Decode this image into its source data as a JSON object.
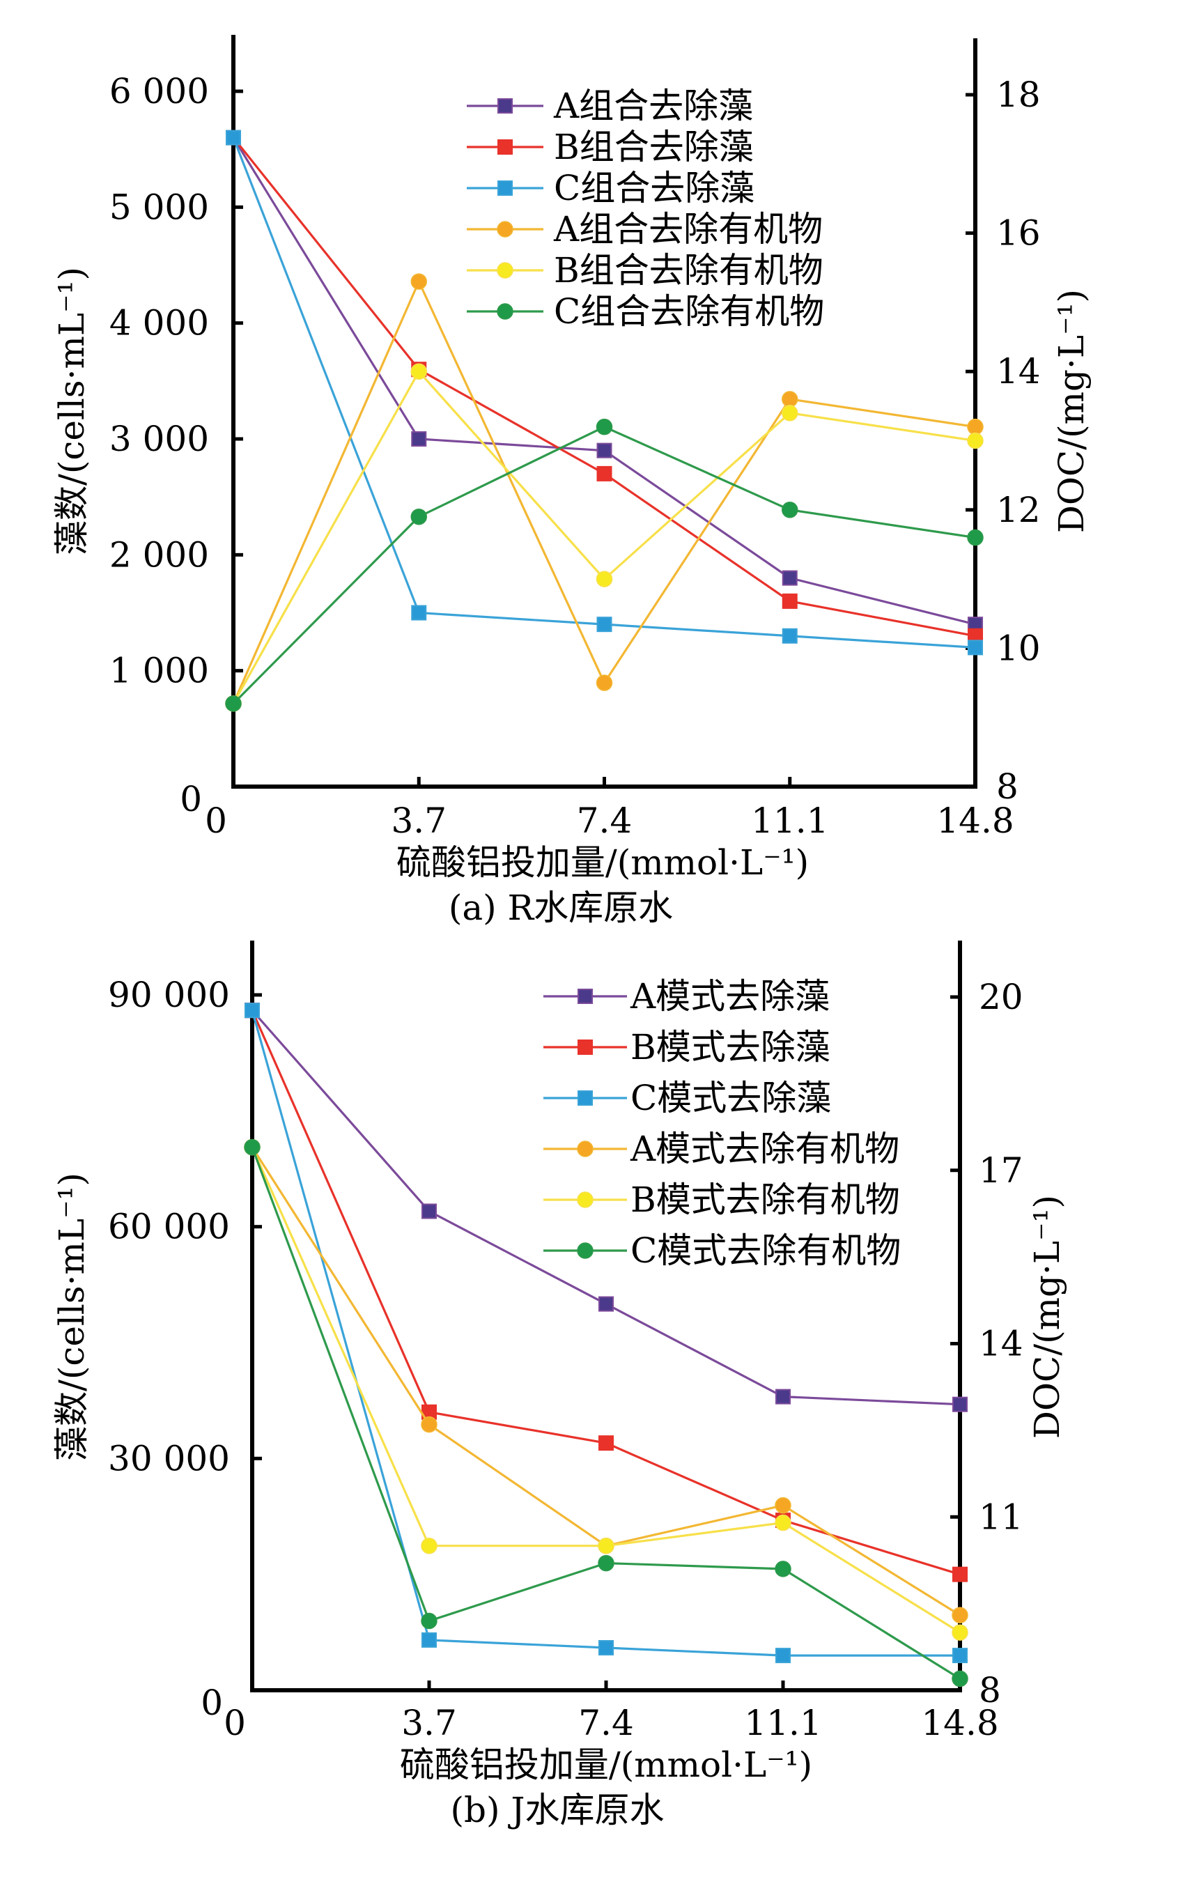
{
  "chart_data": [
    {
      "type": "line",
      "caption": "(a) R水库原水",
      "xlabel": "硫酸铝投加量/(mmol·L⁻¹)",
      "ylabel": "藻数/(cells·mL⁻¹)",
      "y2label": "DOC/(mg·L⁻¹)",
      "x_ticks": [
        "0",
        "3.7",
        "7.4",
        "11.1",
        "14.8"
      ],
      "x": [
        0,
        3.7,
        7.4,
        11.1,
        14.8
      ],
      "xlim": [
        0,
        14.8
      ],
      "ylim": [
        0,
        6000
      ],
      "y_ticks": [
        {
          "v": 0,
          "label": "0"
        },
        {
          "v": 1000,
          "label": "1 000"
        },
        {
          "v": 2000,
          "label": "2 000"
        },
        {
          "v": 3000,
          "label": "3 000"
        },
        {
          "v": 4000,
          "label": "4 000"
        },
        {
          "v": 5000,
          "label": "5 000"
        },
        {
          "v": 6000,
          "label": "6 000"
        }
      ],
      "y2lim": [
        8,
        18
      ],
      "y2_ticks": [
        {
          "v": 8,
          "label": "8"
        },
        {
          "v": 10,
          "label": "10"
        },
        {
          "v": 12,
          "label": "12"
        },
        {
          "v": 14,
          "label": "14"
        },
        {
          "v": 16,
          "label": "16"
        },
        {
          "v": 18,
          "label": "18"
        }
      ],
      "legend_position": "top-right",
      "grid": false,
      "series": [
        {
          "name": "A组合去除藻",
          "axis": "left",
          "marker": "square",
          "color": "#7b4a9a",
          "marker_fill": "#4b3a8c",
          "values": [
            5600,
            3000,
            2900,
            1800,
            1400
          ]
        },
        {
          "name": "B组合去除藻",
          "axis": "left",
          "marker": "square",
          "color": "#e8322a",
          "marker_fill": "#e8322a",
          "values": [
            5600,
            3600,
            2700,
            1600,
            1300
          ]
        },
        {
          "name": "C组合去除藻",
          "axis": "left",
          "marker": "square",
          "color": "#3aa3d8",
          "marker_fill": "#2a9ad6",
          "values": [
            5600,
            1500,
            1400,
            1300,
            1200
          ]
        },
        {
          "name": "A组合去除有机物",
          "axis": "right",
          "marker": "circle",
          "color": "#f3b733",
          "marker_fill": "#f5a623",
          "values": [
            9.2,
            15.3,
            9.5,
            13.6,
            13.2
          ]
        },
        {
          "name": "B组合去除有机物",
          "axis": "right",
          "marker": "circle",
          "color": "#f7e04a",
          "marker_fill": "#f8ea20",
          "values": [
            9.2,
            14.0,
            11.0,
            13.4,
            13.0
          ]
        },
        {
          "name": "C组合去除有机物",
          "axis": "right",
          "marker": "circle",
          "color": "#2e9a4c",
          "marker_fill": "#1f9a48",
          "values": [
            9.2,
            11.9,
            13.2,
            12.0,
            11.6
          ]
        }
      ]
    },
    {
      "type": "line",
      "caption": "(b) J水库原水",
      "xlabel": "硫酸铝投加量/(mmol·L⁻¹)",
      "ylabel": "藻数/(cells·mL⁻¹)",
      "y2label": "DOC/(mg·L⁻¹)",
      "x_ticks": [
        "0",
        "3.7",
        "7.4",
        "11.1",
        "14.8"
      ],
      "x": [
        0,
        3.7,
        7.4,
        11.1,
        14.8
      ],
      "xlim": [
        0,
        14.8
      ],
      "ylim": [
        0,
        90000
      ],
      "y_ticks": [
        {
          "v": 0,
          "label": "0"
        },
        {
          "v": 30000,
          "label": "30 000"
        },
        {
          "v": 60000,
          "label": "60 000"
        },
        {
          "v": 90000,
          "label": "90 000"
        }
      ],
      "y2lim": [
        8,
        20
      ],
      "y2_ticks": [
        {
          "v": 8,
          "label": "8"
        },
        {
          "v": 11,
          "label": "11"
        },
        {
          "v": 14,
          "label": "14"
        },
        {
          "v": 17,
          "label": "17"
        },
        {
          "v": 20,
          "label": "20"
        }
      ],
      "legend_position": "top-right",
      "grid": false,
      "series": [
        {
          "name": "A模式去除藻",
          "axis": "left",
          "marker": "square",
          "color": "#7b4a9a",
          "marker_fill": "#4b3a8c",
          "values": [
            88000,
            62000,
            50000,
            38000,
            37000
          ]
        },
        {
          "name": "B模式去除藻",
          "axis": "left",
          "marker": "square",
          "color": "#e8322a",
          "marker_fill": "#e8322a",
          "values": [
            88000,
            36000,
            32000,
            22000,
            15000
          ]
        },
        {
          "name": "C模式去除藻",
          "axis": "left",
          "marker": "square",
          "color": "#3aa3d8",
          "marker_fill": "#2a9ad6",
          "values": [
            88000,
            6500,
            5500,
            4500,
            4500
          ]
        },
        {
          "name": "A模式去除有机物",
          "axis": "right",
          "marker": "circle",
          "color": "#f3b733",
          "marker_fill": "#f5a623",
          "values": [
            17.4,
            12.6,
            10.5,
            11.2,
            9.3
          ]
        },
        {
          "name": "B模式去除有机物",
          "axis": "right",
          "marker": "circle",
          "color": "#f7e04a",
          "marker_fill": "#f8ea20",
          "values": [
            17.4,
            10.5,
            10.5,
            10.9,
            9.0
          ]
        },
        {
          "name": "C模式去除有机物",
          "axis": "right",
          "marker": "circle",
          "color": "#2e9a4c",
          "marker_fill": "#1f9a48",
          "values": [
            17.4,
            9.2,
            10.2,
            10.1,
            8.2
          ]
        }
      ]
    }
  ]
}
